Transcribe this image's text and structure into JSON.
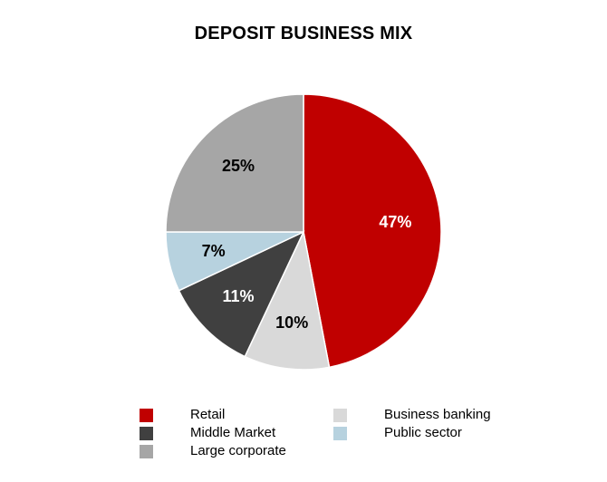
{
  "chart_data": {
    "type": "pie",
    "title": "DEPOSIT BUSINESS MIX",
    "slices": [
      {
        "name": "Retail",
        "value": 47,
        "label": "47%",
        "color": "#c00000",
        "label_color": "#ffffff"
      },
      {
        "name": "Business banking",
        "value": 10,
        "label": "10%",
        "color": "#d9d9d9",
        "label_color": "#000000"
      },
      {
        "name": "Middle Market",
        "value": 11,
        "label": "11%",
        "color": "#404040",
        "label_color": "#ffffff"
      },
      {
        "name": "Public sector",
        "value": 7,
        "label": "7%",
        "color": "#b7d2df",
        "label_color": "#000000"
      },
      {
        "name": "Large corporate",
        "value": 25,
        "label": "25%",
        "color": "#a6a6a6",
        "label_color": "#000000"
      }
    ],
    "legend": {
      "position": "bottom",
      "items": [
        {
          "name": "Retail",
          "color": "#c00000"
        },
        {
          "name": "Middle Market",
          "color": "#404040"
        },
        {
          "name": "Large corporate",
          "color": "#a6a6a6"
        },
        {
          "name": "Business banking",
          "color": "#d9d9d9"
        },
        {
          "name": "Public sector",
          "color": "#b7d2df"
        }
      ]
    }
  }
}
